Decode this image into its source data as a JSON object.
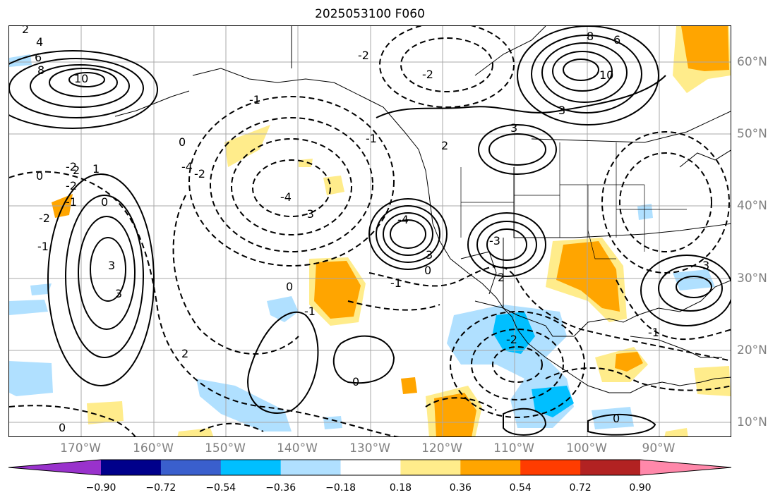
{
  "title": "2025053100 F060",
  "lat_labels": [
    "60°N",
    "50°N",
    "40°N",
    "30°N",
    "20°N",
    "10°N"
  ],
  "lon_labels": [
    "170°W",
    "160°W",
    "150°W",
    "140°W",
    "130°W",
    "120°W",
    "110°W",
    "100°W",
    "90°W"
  ],
  "colorbar": {
    "ticks": [
      "−0.90",
      "−0.72",
      "−0.54",
      "−0.36",
      "−0.18",
      "0.18",
      "0.36",
      "0.54",
      "0.72",
      "0.90"
    ],
    "colors": [
      "#9932cc",
      "#00008b",
      "#3a5fcd",
      "#00bfff",
      "#b0e0ff",
      "#ffffff",
      "#ffec8b",
      "#ffa500",
      "#ff3c00",
      "#b22222",
      "#ff88aa"
    ]
  },
  "contour_labels": [
    "2",
    "4",
    "6",
    "8",
    "10",
    "-2",
    "2",
    "1",
    "-2",
    "-1",
    "0",
    "-2",
    "-1",
    "8",
    "6",
    "10",
    "3",
    "3",
    "2",
    "-4",
    "-3",
    "-2",
    "-1",
    "-2",
    "0",
    "-1",
    "-2",
    "3",
    "-4",
    "3",
    "-3",
    "-1",
    "3",
    "2",
    "0",
    "0",
    "-1",
    "0",
    "2",
    "3",
    "-2",
    "0",
    "-1",
    "0",
    "-4",
    "0"
  ]
}
